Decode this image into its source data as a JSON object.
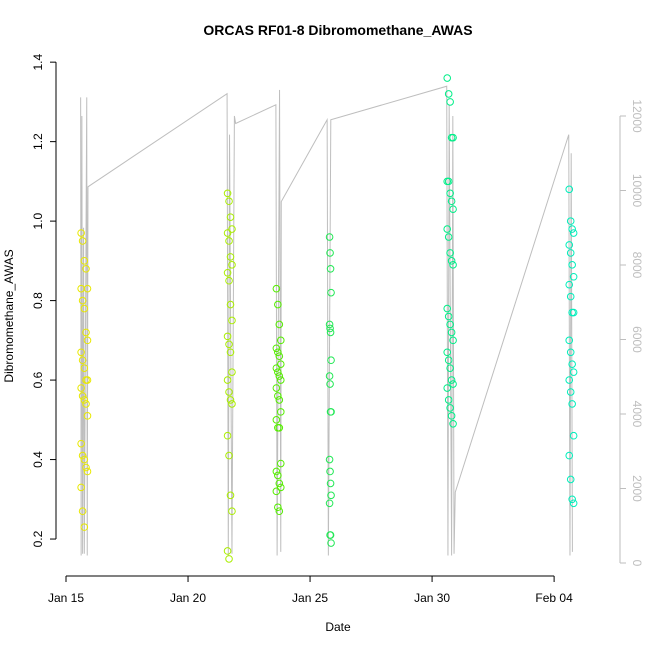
{
  "chart_data": {
    "type": "scatter",
    "title": "ORCAS RF01-8 Dibromomethane_AWAS",
    "x_label": "Date",
    "y_label": "Dibromomethane_AWAS",
    "xlim": [
      14.59,
      37.7
    ],
    "xticks": [
      {
        "value": 15,
        "label": "Jan 15"
      },
      {
        "value": 20,
        "label": "Jan 20"
      },
      {
        "value": 25,
        "label": "Jan 25"
      },
      {
        "value": 30,
        "label": "Jan 30"
      },
      {
        "value": 35,
        "label": "Feb 04"
      }
    ],
    "ylim": [
      0.107,
      1.418
    ],
    "yticks": [
      0.2,
      0.4,
      0.6,
      0.8,
      {
        "value": 1,
        "label": "1.0"
      },
      1.2,
      1.4
    ],
    "y2lim": [
      -349,
      13638
    ],
    "y2ticks": [
      0,
      2000,
      4000,
      6000,
      8000,
      10000,
      12000
    ],
    "series": [
      {
        "color": "#e8e800",
        "x": [
          15.62,
          15.68,
          15.75,
          15.82,
          15.88,
          15.62,
          15.68,
          15.75,
          15.82,
          15.88,
          15.62,
          15.68,
          15.75,
          15.82,
          15.88,
          15.62,
          15.68,
          15.75,
          15.82,
          15.88,
          15.62,
          15.68,
          15.75,
          15.82,
          15.88,
          15.62,
          15.68,
          15.75
        ],
        "values": [
          0.97,
          0.95,
          0.9,
          0.88,
          0.83,
          0.83,
          0.8,
          0.78,
          0.72,
          0.7,
          0.67,
          0.65,
          0.63,
          0.6,
          0.6,
          0.58,
          0.56,
          0.55,
          0.54,
          0.51,
          0.44,
          0.41,
          0.4,
          0.38,
          0.37,
          0.33,
          0.27,
          0.23
        ]
      },
      {
        "color": "#aaee00",
        "x": [
          21.62,
          21.68,
          21.74,
          21.8,
          21.62,
          21.68,
          21.74,
          21.8,
          21.62,
          21.68,
          21.74,
          21.8,
          21.62,
          21.68,
          21.74,
          21.8,
          21.62,
          21.68,
          21.74,
          21.8,
          21.62,
          21.68,
          21.74,
          21.8,
          21.62,
          21.68
        ],
        "values": [
          1.07,
          1.05,
          1.01,
          0.98,
          0.97,
          0.95,
          0.91,
          0.89,
          0.87,
          0.85,
          0.79,
          0.75,
          0.71,
          0.69,
          0.67,
          0.62,
          0.6,
          0.57,
          0.55,
          0.54,
          0.46,
          0.41,
          0.31,
          0.27,
          0.17,
          0.15
        ]
      },
      {
        "color": "#55ee00",
        "x": [
          23.62,
          23.68,
          23.74,
          23.8,
          23.62,
          23.68,
          23.74,
          23.8,
          23.62,
          23.68,
          23.74,
          23.8,
          23.62,
          23.68,
          23.74,
          23.8,
          23.62,
          23.68,
          23.74,
          23.8,
          23.62,
          23.68,
          23.74,
          23.8,
          23.62,
          23.68,
          23.74
        ],
        "values": [
          0.83,
          0.79,
          0.74,
          0.7,
          0.68,
          0.67,
          0.66,
          0.64,
          0.63,
          0.62,
          0.61,
          0.6,
          0.58,
          0.56,
          0.55,
          0.52,
          0.5,
          0.48,
          0.48,
          0.39,
          0.37,
          0.36,
          0.34,
          0.33,
          0.32,
          0.28,
          0.27
        ]
      },
      {
        "color": "#22e855",
        "x": [
          25.8,
          25.82,
          25.84,
          25.86,
          25.8,
          25.82,
          25.84,
          25.86,
          25.8,
          25.82,
          25.84,
          25.86,
          25.8,
          25.82,
          25.84,
          25.86,
          25.8,
          25.82,
          25.84,
          25.86
        ],
        "values": [
          0.96,
          0.92,
          0.88,
          0.82,
          0.74,
          0.73,
          0.72,
          0.65,
          0.61,
          0.59,
          0.52,
          0.52,
          0.4,
          0.37,
          0.34,
          0.31,
          0.29,
          0.21,
          0.21,
          0.19
        ]
      },
      {
        "color": "#00ee88",
        "x": [
          30.62,
          30.68,
          30.74,
          30.8,
          30.86,
          30.62,
          30.68,
          30.74,
          30.8,
          30.86,
          30.62,
          30.68,
          30.74,
          30.8,
          30.86,
          30.62,
          30.68,
          30.74,
          30.8,
          30.86,
          30.62,
          30.68,
          30.74,
          30.8,
          30.86,
          30.62,
          30.68,
          30.74,
          30.8,
          30.86
        ],
        "values": [
          1.36,
          1.32,
          1.3,
          1.21,
          1.21,
          1.1,
          1.1,
          1.07,
          1.05,
          1.03,
          0.98,
          0.96,
          0.92,
          0.9,
          0.89,
          0.78,
          0.76,
          0.74,
          0.72,
          0.7,
          0.67,
          0.65,
          0.63,
          0.6,
          0.59,
          0.58,
          0.55,
          0.53,
          0.51,
          0.49
        ]
      },
      {
        "color": "#00eebb",
        "x": [
          35.62,
          35.68,
          35.74,
          35.8,
          35.62,
          35.68,
          35.74,
          35.8,
          35.62,
          35.68,
          35.74,
          35.8,
          35.62,
          35.68,
          35.74,
          35.8,
          35.62,
          35.68,
          35.74,
          35.8,
          35.62,
          35.68,
          35.74,
          35.8
        ],
        "values": [
          1.08,
          1.0,
          0.98,
          0.97,
          0.94,
          0.92,
          0.89,
          0.86,
          0.84,
          0.81,
          0.77,
          0.77,
          0.7,
          0.67,
          0.64,
          0.62,
          0.6,
          0.57,
          0.54,
          0.46,
          0.41,
          0.35,
          0.3,
          0.29
        ]
      },
      {
        "type": "line",
        "axis": "y2",
        "color": "#bebebe",
        "x": [
          15.6,
          15.62,
          15.65,
          15.68,
          15.72,
          15.75,
          15.85,
          15.87,
          15.9,
          21.6,
          21.65,
          21.7,
          21.8,
          21.9,
          21.95,
          23.6,
          23.65,
          23.75,
          23.8,
          23.82,
          25.7,
          25.75,
          25.85,
          30.6,
          30.65,
          30.7,
          30.8,
          30.85,
          30.9,
          30.95,
          35.6,
          35.65,
          35.7,
          35.75
        ],
        "values": [
          12500,
          200,
          12000,
          250,
          9000,
          250,
          12500,
          200,
          10100,
          12600,
          200,
          11500,
          250,
          12000,
          11800,
          12300,
          200,
          12700,
          300,
          9700,
          11900,
          200,
          11900,
          12800,
          200,
          12300,
          200,
          12000,
          250,
          1900,
          11500,
          200,
          11000,
          300
        ]
      }
    ]
  }
}
